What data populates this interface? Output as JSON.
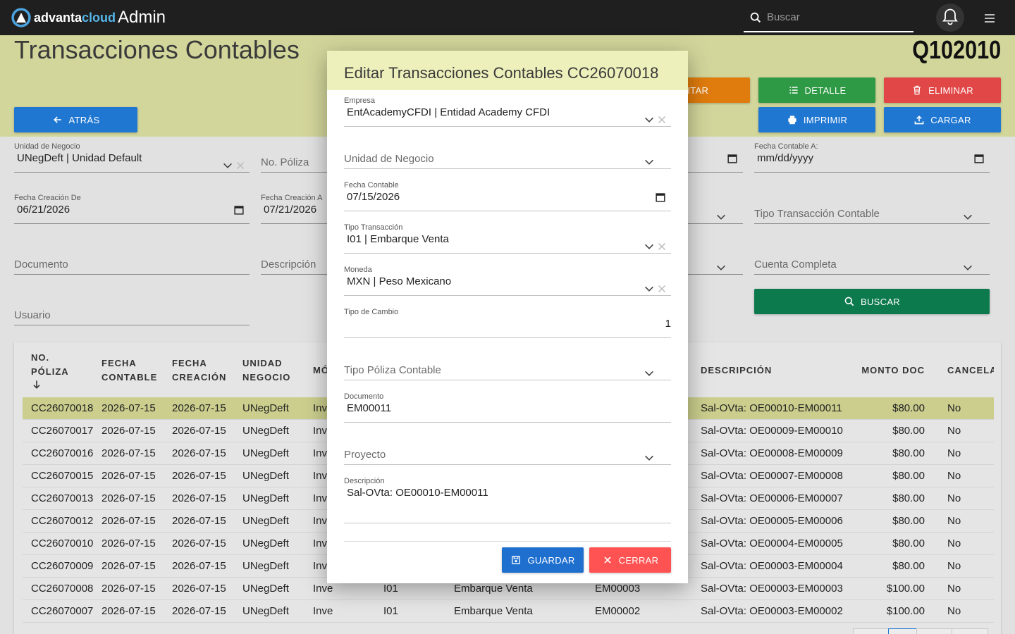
{
  "navbar": {
    "brand_main": "advanta",
    "brand_accent": "cloud",
    "section": "Admin",
    "search_placeholder": "Buscar"
  },
  "page": {
    "title": "Transacciones Contables",
    "code": "Q102010"
  },
  "buttons": {
    "back": "ATRÁS",
    "edit": "EDITAR",
    "detail": "DETALLE",
    "delete": "ELIMINAR",
    "print": "IMPRIMIR",
    "upload": "CARGAR",
    "search": "BUSCAR"
  },
  "filters": [
    {
      "label": "Unidad de Negocio",
      "value": "UNegDeft | Unidad Default"
    },
    {
      "placeholder": "No. Póliza"
    },
    {
      "label": "Fecha Contable A:",
      "value": "mm/dd/yyyy"
    },
    {
      "label": "Fecha Creación De",
      "value": "06/21/2026"
    },
    {
      "label": "Fecha Creación A",
      "value": "07/21/2026"
    },
    {
      "placeholder": "Tipo Transacción Contable"
    },
    {
      "placeholder": "Documento"
    },
    {
      "placeholder": "Descripción"
    },
    {
      "placeholder": "Cuenta Completa"
    },
    {
      "placeholder": "Usuario"
    }
  ],
  "table": {
    "headers": [
      "NO. PÓLIZA",
      "FECHA CONTABLE",
      "FECHA CREACIÓN",
      "UNIDAD NEGOCIO",
      "MÓ",
      null,
      null,
      null,
      "DESCRIPCIÓN",
      "MONTO DOC",
      "CANCELA"
    ],
    "rows": [
      [
        "CC26070018",
        "2026-07-15",
        "2026-07-15",
        "UNegDeft",
        "Inv",
        null,
        null,
        null,
        "Sal-OVta: OE00010-EM00011",
        "$80.00",
        "No"
      ],
      [
        "CC26070017",
        "2026-07-15",
        "2026-07-15",
        "UNegDeft",
        "Inv",
        null,
        null,
        null,
        "Sal-OVta: OE00009-EM00010",
        "$80.00",
        "No"
      ],
      [
        "CC26070016",
        "2026-07-15",
        "2026-07-15",
        "UNegDeft",
        "Inv",
        null,
        null,
        null,
        "Sal-OVta: OE00008-EM00009",
        "$80.00",
        "No"
      ],
      [
        "CC26070015",
        "2026-07-15",
        "2026-07-15",
        "UNegDeft",
        "Inv",
        null,
        null,
        null,
        "Sal-OVta: OE00007-EM00008",
        "$80.00",
        "No"
      ],
      [
        "CC26070013",
        "2026-07-15",
        "2026-07-15",
        "UNegDeft",
        "Inv",
        null,
        null,
        null,
        "Sal-OVta: OE00006-EM00007",
        "$80.00",
        "No"
      ],
      [
        "CC26070012",
        "2026-07-15",
        "2026-07-15",
        "UNegDeft",
        "Inv",
        null,
        null,
        null,
        "Sal-OVta: OE00005-EM00006",
        "$80.00",
        "No"
      ],
      [
        "CC26070010",
        "2026-07-15",
        "2026-07-15",
        "UNegDeft",
        "Inv",
        null,
        null,
        null,
        "Sal-OVta: OE00004-EM00005",
        "$80.00",
        "No"
      ],
      [
        "CC26070009",
        "2026-07-15",
        "2026-07-15",
        "UNegDeft",
        "Inv",
        null,
        null,
        null,
        "Sal-OVta: OE00003-EM00004",
        "$80.00",
        "No"
      ],
      [
        "CC26070008",
        "2026-07-15",
        "2026-07-15",
        "UNegDeft",
        "Inve",
        "I01",
        "Embarque Venta",
        "EM00003",
        "Sal-OVta: OE00003-EM00003",
        "$100.00",
        "No"
      ],
      [
        "CC26070007",
        "2026-07-15",
        "2026-07-15",
        "UNegDeft",
        "Inve",
        "I01",
        "Embarque Venta",
        "EM00002",
        "Sal-OVta: OE00003-EM00002",
        "$100.00",
        "No"
      ]
    ]
  },
  "modal": {
    "title": "Editar Transacciones Contables CC26070018",
    "fields": [
      {
        "label": "Empresa",
        "value": "EntAcademyCFDI | Entidad Academy CFDI"
      },
      {
        "placeholder": "Unidad de Negocio"
      },
      {
        "label": "Fecha Contable",
        "value": "07/15/2026"
      },
      {
        "label": "Tipo Transacción",
        "value": "I01 | Embarque Venta"
      },
      {
        "label": "Moneda",
        "value": "MXN | Peso Mexicano"
      },
      {
        "label": "Tipo de Cambio",
        "value": "1"
      },
      {
        "placeholder": "Tipo Póliza Contable"
      },
      {
        "label": "Documento",
        "value": "EM00011"
      },
      {
        "placeholder": "Proyecto"
      },
      {
        "label": "Descripción",
        "value": "Sal-OVta: OE00010-EM00011"
      }
    ],
    "save": "GUARDAR",
    "close": "CERRAR"
  }
}
